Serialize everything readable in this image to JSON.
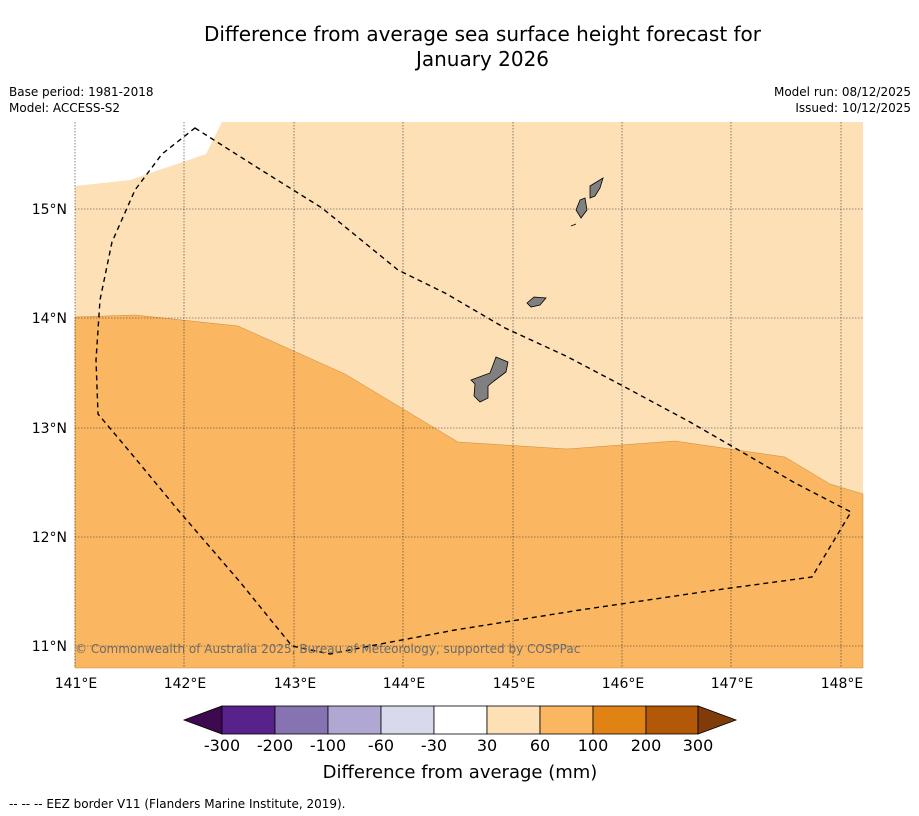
{
  "title_line1": "Difference from average sea surface height forecast for",
  "title_line2": "January 2026",
  "base_period": "Base period: 1981-2018",
  "model": "Model: ACCESS-S2",
  "model_run": "Model run: 08/12/2025",
  "issued": "Issued: 10/12/2025",
  "copyright": "© Commonwealth of Australia 2025, Bureau of Meteorology, supported by COSPPac",
  "lon_ticks": [
    "141°E",
    "142°E",
    "143°E",
    "144°E",
    "145°E",
    "146°E",
    "147°E",
    "148°E"
  ],
  "lat_ticks": [
    "15°N",
    "14°N",
    "13°N",
    "12°N",
    "11°N"
  ],
  "colorbar": {
    "title": "Difference from average (mm)",
    "labels": [
      "-300",
      "-200",
      "-100",
      "-60",
      "-30",
      "30",
      "60",
      "100",
      "200",
      "300"
    ],
    "colors": [
      "#3d0a4f",
      "#58228c",
      "#8673b2",
      "#b0a8d3",
      "#d9d9ec",
      "#ffffff",
      "#fde0b6",
      "#fab660",
      "#e08214",
      "#b35806",
      "#7f3b08"
    ]
  },
  "legend_note": "--  --  -- EEZ border V11 (Flanders Marine Institute, 2019).",
  "colors": {
    "band_30_60": "#fde0b6",
    "band_60_100": "#fab660",
    "land": "#808080"
  },
  "icons": {
    "islands": "island-shape"
  }
}
